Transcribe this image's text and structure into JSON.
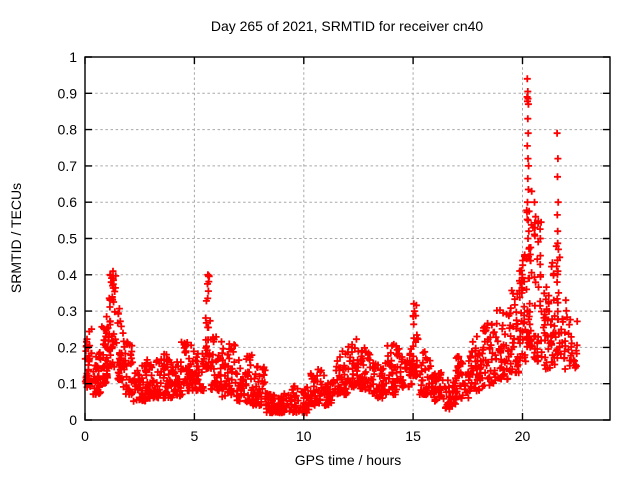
{
  "chart_data": {
    "type": "scatter",
    "title": "Day 265 of 2021, SRMTID for receiver cn40",
    "xlabel": "GPS time / hours",
    "ylabel": "SRMTID / TECUs",
    "xlim": [
      0,
      24
    ],
    "ylim": [
      0,
      1
    ],
    "xticks": [
      0,
      5,
      10,
      15,
      20
    ],
    "yticks": [
      0,
      0.1,
      0.2,
      0.3,
      0.4,
      0.5,
      0.6,
      0.7,
      0.8,
      0.9,
      1
    ],
    "grid": true,
    "legend": "none",
    "marker": "plus",
    "marker_color": "#ff0000",
    "marker_size_px": 7,
    "grid_color": "#a8a8a8",
    "border_color": "#000000",
    "background": "#ffffff",
    "seed": 1337,
    "segments_comment": "density envelope read off pixels: [x_start_h, x_end_h, y_low_TECU, y_high_TECU, n_points, mode]",
    "segments": [
      [
        0.0,
        0.35,
        0.09,
        0.26,
        40,
        "band"
      ],
      [
        0.35,
        0.75,
        0.07,
        0.2,
        40,
        "band"
      ],
      [
        0.75,
        1.05,
        0.1,
        0.29,
        35,
        "band"
      ],
      [
        1.05,
        1.45,
        0.13,
        0.4,
        45,
        "band"
      ],
      [
        1.45,
        1.75,
        0.11,
        0.31,
        30,
        "band"
      ],
      [
        1.75,
        2.2,
        0.07,
        0.22,
        40,
        "band"
      ],
      [
        2.2,
        2.8,
        0.05,
        0.16,
        45,
        "band"
      ],
      [
        2.8,
        3.3,
        0.06,
        0.17,
        40,
        "band"
      ],
      [
        3.3,
        3.9,
        0.06,
        0.19,
        45,
        "band"
      ],
      [
        3.9,
        4.4,
        0.06,
        0.16,
        40,
        "band"
      ],
      [
        4.4,
        5.0,
        0.07,
        0.22,
        45,
        "band"
      ],
      [
        5.0,
        5.45,
        0.08,
        0.19,
        35,
        "band"
      ],
      [
        5.5,
        5.75,
        0.14,
        0.4,
        28,
        "spike"
      ],
      [
        5.75,
        6.25,
        0.08,
        0.23,
        38,
        "band"
      ],
      [
        6.25,
        6.95,
        0.06,
        0.21,
        50,
        "band"
      ],
      [
        6.95,
        7.65,
        0.05,
        0.18,
        50,
        "band"
      ],
      [
        7.65,
        8.3,
        0.04,
        0.15,
        48,
        "band"
      ],
      [
        8.3,
        9.4,
        0.02,
        0.075,
        80,
        "band"
      ],
      [
        9.4,
        10.25,
        0.02,
        0.095,
        60,
        "band"
      ],
      [
        10.25,
        10.95,
        0.04,
        0.14,
        45,
        "band"
      ],
      [
        10.95,
        11.45,
        0.04,
        0.12,
        35,
        "band"
      ],
      [
        11.45,
        12.0,
        0.07,
        0.19,
        40,
        "band"
      ],
      [
        12.0,
        12.55,
        0.09,
        0.23,
        42,
        "band"
      ],
      [
        12.55,
        13.1,
        0.08,
        0.2,
        40,
        "band"
      ],
      [
        13.1,
        13.7,
        0.06,
        0.16,
        40,
        "band"
      ],
      [
        13.7,
        14.45,
        0.07,
        0.21,
        48,
        "band"
      ],
      [
        14.45,
        14.95,
        0.09,
        0.2,
        35,
        "band"
      ],
      [
        14.95,
        15.25,
        0.12,
        0.32,
        25,
        "spike"
      ],
      [
        15.25,
        15.95,
        0.07,
        0.19,
        45,
        "band"
      ],
      [
        15.95,
        16.45,
        0.05,
        0.14,
        35,
        "band"
      ],
      [
        16.45,
        16.95,
        0.03,
        0.12,
        35,
        "band"
      ],
      [
        16.95,
        17.55,
        0.06,
        0.18,
        40,
        "band"
      ],
      [
        17.55,
        18.15,
        0.08,
        0.23,
        42,
        "band"
      ],
      [
        18.15,
        18.75,
        0.09,
        0.27,
        42,
        "band"
      ],
      [
        18.75,
        19.35,
        0.11,
        0.31,
        42,
        "band"
      ],
      [
        19.35,
        19.85,
        0.13,
        0.36,
        40,
        "band"
      ],
      [
        19.85,
        20.15,
        0.16,
        0.46,
        35,
        "band"
      ],
      [
        20.15,
        20.45,
        0.2,
        0.58,
        40,
        "spike"
      ],
      [
        20.45,
        20.95,
        0.16,
        0.55,
        40,
        "spike"
      ],
      [
        20.95,
        21.3,
        0.14,
        0.41,
        30,
        "band"
      ],
      [
        21.3,
        21.5,
        0.15,
        0.45,
        20,
        "band"
      ],
      [
        21.5,
        21.72,
        0.17,
        0.5,
        22,
        "spike"
      ],
      [
        21.72,
        22.5,
        0.14,
        0.33,
        40,
        "band"
      ]
    ],
    "extra_points_comment": "notable high outliers read off the plot [hours, TECUs]",
    "extra_points": [
      [
        1.28,
        0.41
      ],
      [
        1.3,
        0.385
      ],
      [
        1.26,
        0.37
      ],
      [
        5.62,
        0.4
      ],
      [
        5.6,
        0.375
      ],
      [
        5.64,
        0.355
      ],
      [
        5.61,
        0.335
      ],
      [
        15.03,
        0.32
      ],
      [
        15.06,
        0.3
      ],
      [
        15.01,
        0.285
      ],
      [
        20.22,
        0.94
      ],
      [
        20.24,
        0.905
      ],
      [
        20.21,
        0.89
      ],
      [
        20.25,
        0.885
      ],
      [
        20.23,
        0.878
      ],
      [
        20.27,
        0.87
      ],
      [
        20.24,
        0.83
      ],
      [
        20.26,
        0.79
      ],
      [
        20.22,
        0.755
      ],
      [
        20.25,
        0.72
      ],
      [
        20.28,
        0.7
      ],
      [
        20.24,
        0.665
      ],
      [
        20.27,
        0.635
      ],
      [
        20.23,
        0.6
      ],
      [
        20.3,
        0.575
      ],
      [
        20.26,
        0.55
      ],
      [
        20.29,
        0.52
      ],
      [
        20.25,
        0.5
      ],
      [
        20.31,
        0.475
      ],
      [
        20.28,
        0.45
      ],
      [
        20.55,
        0.6
      ],
      [
        20.6,
        0.56
      ],
      [
        20.48,
        0.53
      ],
      [
        20.42,
        0.63
      ],
      [
        21.58,
        0.79
      ],
      [
        21.62,
        0.72
      ],
      [
        21.6,
        0.67
      ],
      [
        21.63,
        0.6
      ],
      [
        21.59,
        0.565
      ],
      [
        21.61,
        0.52
      ],
      [
        21.64,
        0.47
      ],
      [
        21.6,
        0.44
      ],
      [
        21.62,
        0.41
      ],
      [
        21.58,
        0.38
      ],
      [
        21.65,
        0.35
      ]
    ]
  }
}
